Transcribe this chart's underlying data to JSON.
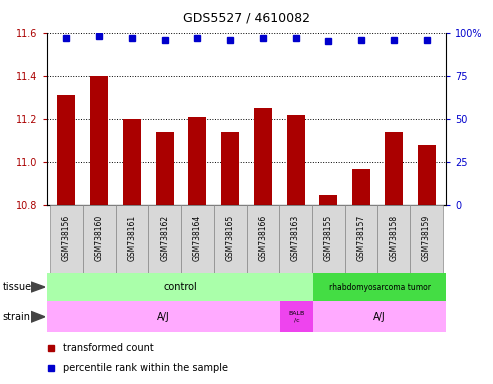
{
  "title": "GDS5527 / 4610082",
  "samples": [
    "GSM738156",
    "GSM738160",
    "GSM738161",
    "GSM738162",
    "GSM738164",
    "GSM738165",
    "GSM738166",
    "GSM738163",
    "GSM738155",
    "GSM738157",
    "GSM738158",
    "GSM738159"
  ],
  "transformed_counts": [
    11.31,
    11.4,
    11.2,
    11.14,
    11.21,
    11.14,
    11.25,
    11.22,
    10.85,
    10.97,
    11.14,
    11.08
  ],
  "percentile_ranks": [
    97,
    98,
    97,
    96,
    97,
    96,
    97,
    97,
    95,
    96,
    96,
    96
  ],
  "ylim_left": [
    10.8,
    11.6
  ],
  "ylim_right": [
    0,
    100
  ],
  "yticks_left": [
    10.8,
    11.0,
    11.2,
    11.4,
    11.6
  ],
  "yticks_right": [
    0,
    25,
    50,
    75,
    100
  ],
  "bar_color": "#aa0000",
  "dot_color": "#0000cc",
  "tissue_control_color": "#aaffaa",
  "tissue_rhabdo_color": "#44dd44",
  "strain_aj_color": "#ffaaff",
  "strain_balb_color": "#ee44ee",
  "sample_box_color": "#d8d8d8",
  "legend_items": [
    {
      "color": "#aa0000",
      "label": "transformed count"
    },
    {
      "color": "#0000cc",
      "label": "percentile rank within the sample"
    }
  ],
  "grid_color": "black",
  "figsize": [
    4.93,
    3.84
  ],
  "dpi": 100
}
